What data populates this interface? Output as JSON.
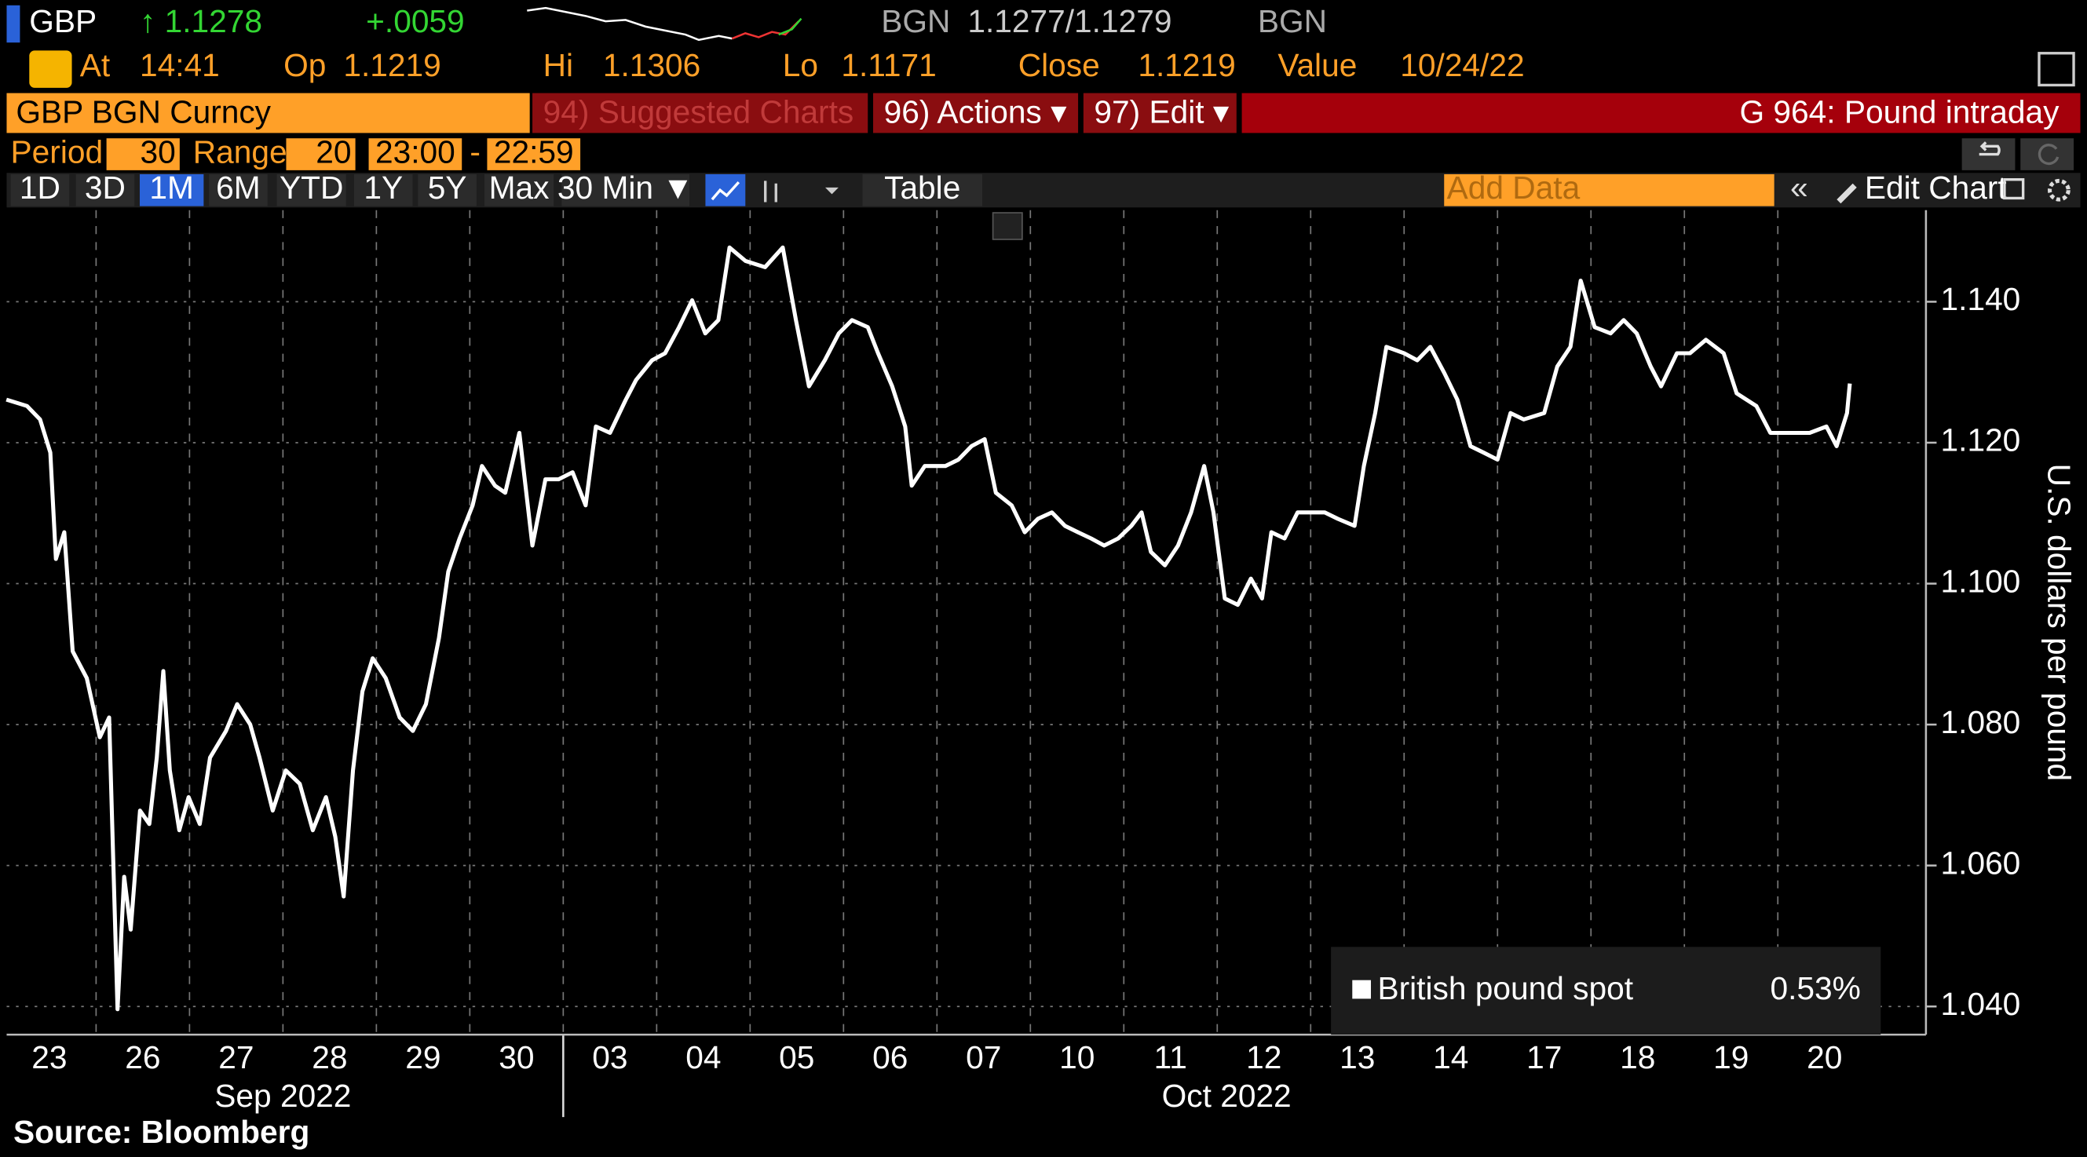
{
  "header": {
    "ticker": "GBP",
    "last": "↑ 1.1278",
    "change": "+.0059",
    "source": "BGN",
    "bid_ask": "1.1277/1.1279",
    "source_2": "BGN"
  },
  "quote": [
    {
      "label": "At",
      "value": "14:41"
    },
    {
      "label": "Op",
      "value": "1.1219"
    },
    {
      "label": "Hi",
      "value": "1.1306"
    },
    {
      "label": "Lo",
      "value": "1.1171"
    },
    {
      "label": "Close",
      "value": "1.1219"
    },
    {
      "label": "Value",
      "value": "10/24/22"
    }
  ],
  "menu": {
    "security": "GBP BGN Curncy",
    "suggested": "94) Suggested Charts",
    "actions": "96) Actions ▾",
    "edit": "97) Edit ▾",
    "page_title": "G 964: Pound intraday"
  },
  "settings": {
    "period_label": "Period",
    "period": "30",
    "range_label": "Range",
    "range": "20",
    "start": "23:00",
    "separator": "-",
    "end": "22:59"
  },
  "toolbar": [
    "1D",
    "3D",
    "1M",
    "6M",
    "YTD",
    "1Y",
    "5Y",
    "Max",
    "30 Min ▼",
    "Table"
  ],
  "add_data": "Add Data",
  "edit_chart": "Edit Chart",
  "source_note": "Source: Bloomberg",
  "chart_data": {
    "type": "line",
    "y_label": "U.S. dollars per pound",
    "grid": true,
    "x": [
      0.04,
      0.26,
      0.4,
      0.51,
      0.57,
      0.66,
      0.75,
      0.9,
      1.04,
      1.14,
      1.23,
      1.3,
      1.37,
      1.47,
      1.57,
      1.65,
      1.72,
      1.79,
      1.89,
      1.99,
      2.11,
      2.22,
      2.39,
      2.51,
      2.65,
      2.75,
      2.89,
      3.03,
      3.18,
      3.32,
      3.46,
      3.56,
      3.65,
      3.75,
      3.85,
      3.96,
      4.1,
      4.25,
      4.39,
      4.53,
      4.67,
      4.77,
      4.89,
      5.03,
      5.13,
      5.27,
      5.38,
      5.53,
      5.67,
      5.81,
      5.95,
      6.1,
      6.24,
      6.35,
      6.5,
      6.67,
      6.78,
      6.95,
      7.09,
      7.24,
      7.38,
      7.52,
      7.66,
      7.78,
      7.95,
      8.16,
      8.35,
      8.49,
      8.63,
      8.8,
      8.95,
      9.09,
      9.26,
      9.37,
      9.52,
      9.66,
      9.73,
      9.87,
      10.09,
      10.23,
      10.37,
      10.51,
      10.63,
      10.8,
      10.94,
      11.08,
      11.23,
      11.37,
      11.51,
      11.65,
      11.79,
      11.94,
      12.08,
      12.19,
      12.29,
      12.44,
      12.58,
      12.72,
      12.86,
      12.96,
      13.08,
      13.22,
      13.36,
      13.48,
      13.58,
      13.72,
      13.86,
      14.0,
      14.15,
      14.29,
      14.47,
      14.57,
      14.69,
      14.81,
      15.0,
      15.14,
      15.28,
      15.43,
      15.57,
      15.71,
      15.85,
      16.0,
      16.14,
      16.28,
      16.5,
      16.64,
      16.78,
      16.89,
      17.04,
      17.21,
      17.35,
      17.49,
      17.64,
      17.75,
      17.92,
      18.06,
      18.23,
      18.42,
      18.56,
      18.77,
      18.92,
      19.13,
      19.34,
      19.52,
      19.63,
      19.74,
      19.77
    ],
    "series": [
      {
        "name": "British pound spot",
        "color": "#ffffff",
        "values": [
          1.1261,
          1.1252,
          1.1233,
          1.1186,
          1.1035,
          1.1073,
          1.0904,
          1.0866,
          1.0782,
          1.081,
          1.0396,
          1.0584,
          1.0509,
          1.0678,
          1.0659,
          1.0753,
          1.0876,
          1.0735,
          1.065,
          1.0697,
          1.0659,
          1.0753,
          1.0791,
          1.0829,
          1.08,
          1.0753,
          1.0678,
          1.0735,
          1.0716,
          1.065,
          1.0697,
          1.0641,
          1.0556,
          1.0735,
          1.0847,
          1.0894,
          1.0866,
          1.081,
          1.0791,
          1.0829,
          1.0923,
          1.1017,
          1.1064,
          1.1111,
          1.1167,
          1.1139,
          1.1129,
          1.1214,
          1.1054,
          1.1148,
          1.1148,
          1.1158,
          1.1111,
          1.1223,
          1.1214,
          1.1261,
          1.1289,
          1.1317,
          1.1327,
          1.1364,
          1.1402,
          1.1355,
          1.1374,
          1.1477,
          1.1458,
          1.1449,
          1.1477,
          1.1374,
          1.128,
          1.1317,
          1.1355,
          1.1374,
          1.1364,
          1.1327,
          1.128,
          1.1223,
          1.1139,
          1.1167,
          1.1167,
          1.1176,
          1.1195,
          1.1205,
          1.1129,
          1.1111,
          1.1073,
          1.1092,
          1.1101,
          1.1082,
          1.1073,
          1.1064,
          1.1054,
          1.1064,
          1.1082,
          1.1101,
          1.1045,
          1.1026,
          1.1054,
          1.1101,
          1.1167,
          1.1101,
          1.0979,
          1.097,
          1.1007,
          1.0979,
          1.1073,
          1.1064,
          1.1101,
          1.1101,
          1.1101,
          1.1092,
          1.1082,
          1.1167,
          1.1242,
          1.1336,
          1.1327,
          1.1317,
          1.1336,
          1.1299,
          1.1261,
          1.1195,
          1.1186,
          1.1176,
          1.1242,
          1.1233,
          1.1242,
          1.1308,
          1.1336,
          1.143,
          1.1364,
          1.1355,
          1.1374,
          1.1355,
          1.1308,
          1.128,
          1.1327,
          1.1327,
          1.1346,
          1.1327,
          1.127,
          1.1252,
          1.1214,
          1.1214,
          1.1214,
          1.1223,
          1.1195,
          1.1242,
          1.1284
        ]
      }
    ],
    "legend_change": "0.53%",
    "xlim": [
      0,
      20.5
    ],
    "xticks": [
      {
        "value": 0.5,
        "label": "23"
      },
      {
        "value": 1.5,
        "label": "26"
      },
      {
        "value": 2.5,
        "label": "27"
      },
      {
        "value": 3.5,
        "label": "28"
      },
      {
        "value": 4.5,
        "label": "29"
      },
      {
        "value": 5.5,
        "label": "30"
      },
      {
        "value": 6.5,
        "label": "03"
      },
      {
        "value": 7.5,
        "label": "04"
      },
      {
        "value": 8.5,
        "label": "05"
      },
      {
        "value": 9.5,
        "label": "06"
      },
      {
        "value": 10.5,
        "label": "07"
      },
      {
        "value": 11.5,
        "label": "10"
      },
      {
        "value": 12.5,
        "label": "11"
      },
      {
        "value": 13.5,
        "label": "12"
      },
      {
        "value": 14.5,
        "label": "13"
      },
      {
        "value": 15.5,
        "label": "14"
      },
      {
        "value": 16.5,
        "label": "17"
      },
      {
        "value": 17.5,
        "label": "18"
      },
      {
        "value": 18.5,
        "label": "19"
      },
      {
        "value": 19.5,
        "label": "20"
      }
    ],
    "months": [
      "Sep 2022",
      "Oct 2022"
    ],
    "ylim": [
      1.036,
      1.153
    ],
    "yticks": [
      {
        "value": 1.04,
        "label": "1.040"
      },
      {
        "value": 1.06,
        "label": "1.060"
      },
      {
        "value": 1.08,
        "label": "1.080"
      },
      {
        "value": 1.1,
        "label": "1.100"
      },
      {
        "value": 1.12,
        "label": "1.120"
      },
      {
        "value": 1.14,
        "label": "1.140"
      }
    ]
  }
}
